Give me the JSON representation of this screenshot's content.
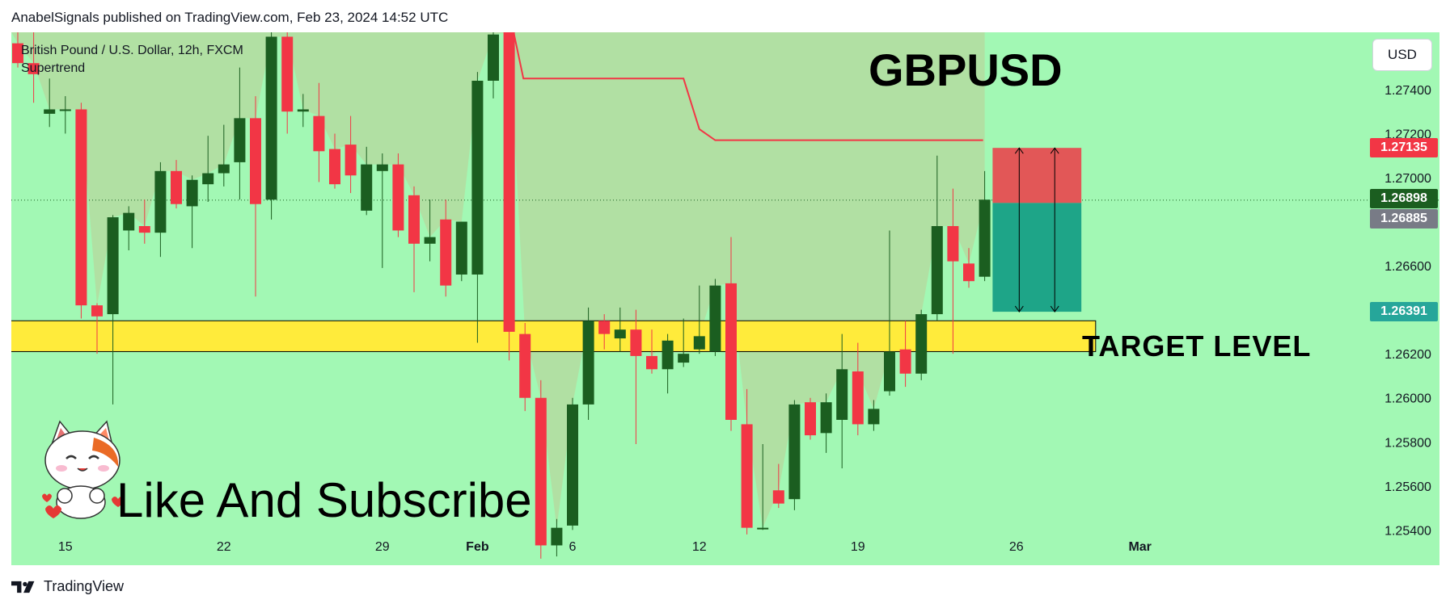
{
  "header": {
    "attribution": "AnabelSignals published on TradingView.com, Feb 23, 2024 14:52 UTC"
  },
  "legend": {
    "symbol_line": "British Pound / U.S. Dollar, 12h, FXCM",
    "indicator": "Supertrend"
  },
  "annotations": {
    "title": "GBPUSD",
    "target_label": "TARGET LEVEL",
    "cta": "Like And Subscribe"
  },
  "currency_button": "USD",
  "price_tags": {
    "stop": {
      "value": "1.27135",
      "color": "#f23645"
    },
    "last": {
      "value": "1.26898",
      "color": "#1b5e20"
    },
    "prev": {
      "value": "1.26885",
      "color": "#787b86"
    },
    "target": {
      "value": "1.26391",
      "color": "#26a69a"
    }
  },
  "footer": {
    "brand": "TradingView"
  },
  "colors": {
    "background": "#a2f8b4",
    "bull": "#1b5e20",
    "bear": "#f23645",
    "supertrend_down": "#f23645",
    "zone": "#ffeb3b"
  },
  "chart_data": {
    "type": "candlestick",
    "symbol": "GBPUSD",
    "timeframe": "12h",
    "ylim": [
      1.2524,
      1.2766
    ],
    "y_ticks": [
      1.274,
      1.272,
      1.27,
      1.266,
      1.262,
      1.26,
      1.258,
      1.256,
      1.254
    ],
    "x_ticks": [
      {
        "label": "15",
        "i": 3
      },
      {
        "label": "22",
        "i": 13
      },
      {
        "label": "29",
        "i": 23
      },
      {
        "label": "Feb",
        "i": 29
      },
      {
        "label": "6",
        "i": 35
      },
      {
        "label": "12",
        "i": 43
      },
      {
        "label": "19",
        "i": 53
      },
      {
        "label": "26",
        "i": 63
      },
      {
        "label": "Mar",
        "i": 70.8
      }
    ],
    "candles": [
      {
        "o": 1.2761,
        "h": 1.2766,
        "l": 1.275,
        "c": 1.2752
      },
      {
        "o": 1.2752,
        "h": 1.277,
        "l": 1.2734,
        "c": 1.2747
      },
      {
        "o": 1.2729,
        "h": 1.2745,
        "l": 1.2723,
        "c": 1.2731
      },
      {
        "o": 1.2731,
        "h": 1.2737,
        "l": 1.272,
        "c": 1.2731
      },
      {
        "o": 1.2731,
        "h": 1.2734,
        "l": 1.2636,
        "c": 1.2642
      },
      {
        "o": 1.2642,
        "h": 1.2643,
        "l": 1.262,
        "c": 1.2637
      },
      {
        "o": 1.2638,
        "h": 1.2683,
        "l": 1.2597,
        "c": 1.2682
      },
      {
        "o": 1.2676,
        "h": 1.2687,
        "l": 1.2667,
        "c": 1.2684
      },
      {
        "o": 1.2678,
        "h": 1.269,
        "l": 1.267,
        "c": 1.2675
      },
      {
        "o": 1.2675,
        "h": 1.2707,
        "l": 1.2664,
        "c": 1.2703
      },
      {
        "o": 1.2703,
        "h": 1.2708,
        "l": 1.2686,
        "c": 1.2688
      },
      {
        "o": 1.2687,
        "h": 1.2701,
        "l": 1.2668,
        "c": 1.2699
      },
      {
        "o": 1.2697,
        "h": 1.2719,
        "l": 1.2689,
        "c": 1.2702
      },
      {
        "o": 1.2702,
        "h": 1.2724,
        "l": 1.2696,
        "c": 1.2706
      },
      {
        "o": 1.2707,
        "h": 1.275,
        "l": 1.269,
        "c": 1.2727
      },
      {
        "o": 1.2727,
        "h": 1.2737,
        "l": 1.2646,
        "c": 1.2688
      },
      {
        "o": 1.269,
        "h": 1.2776,
        "l": 1.2681,
        "c": 1.2764
      },
      {
        "o": 1.2764,
        "h": 1.2771,
        "l": 1.272,
        "c": 1.273
      },
      {
        "o": 1.273,
        "h": 1.2738,
        "l": 1.2723,
        "c": 1.2731
      },
      {
        "o": 1.2728,
        "h": 1.2743,
        "l": 1.2698,
        "c": 1.2712
      },
      {
        "o": 1.2713,
        "h": 1.272,
        "l": 1.2695,
        "c": 1.2697
      },
      {
        "o": 1.2715,
        "h": 1.2728,
        "l": 1.2693,
        "c": 1.2701
      },
      {
        "o": 1.2685,
        "h": 1.2714,
        "l": 1.2683,
        "c": 1.2706
      },
      {
        "o": 1.2703,
        "h": 1.2711,
        "l": 1.2659,
        "c": 1.2706
      },
      {
        "o": 1.2706,
        "h": 1.2711,
        "l": 1.2673,
        "c": 1.2676
      },
      {
        "o": 1.2692,
        "h": 1.2696,
        "l": 1.2648,
        "c": 1.267
      },
      {
        "o": 1.267,
        "h": 1.269,
        "l": 1.2662,
        "c": 1.2673
      },
      {
        "o": 1.2681,
        "h": 1.269,
        "l": 1.2646,
        "c": 1.2651
      },
      {
        "o": 1.2656,
        "h": 1.268,
        "l": 1.2653,
        "c": 1.268
      },
      {
        "o": 1.2656,
        "h": 1.2748,
        "l": 1.2625,
        "c": 1.2744
      },
      {
        "o": 1.2744,
        "h": 1.2769,
        "l": 1.2736,
        "c": 1.2765
      },
      {
        "o": 1.2766,
        "h": 1.2779,
        "l": 1.2617,
        "c": 1.263
      },
      {
        "o": 1.2629,
        "h": 1.2634,
        "l": 1.2594,
        "c": 1.26
      },
      {
        "o": 1.26,
        "h": 1.2608,
        "l": 1.2527,
        "c": 1.2533
      },
      {
        "o": 1.2533,
        "h": 1.2545,
        "l": 1.2528,
        "c": 1.2541
      },
      {
        "o": 1.2542,
        "h": 1.26,
        "l": 1.254,
        "c": 1.2597
      },
      {
        "o": 1.2597,
        "h": 1.2641,
        "l": 1.259,
        "c": 1.2635
      },
      {
        "o": 1.2635,
        "h": 1.2638,
        "l": 1.2622,
        "c": 1.2629
      },
      {
        "o": 1.2627,
        "h": 1.2641,
        "l": 1.2621,
        "c": 1.2631
      },
      {
        "o": 1.2631,
        "h": 1.264,
        "l": 1.2579,
        "c": 1.2619
      },
      {
        "o": 1.2619,
        "h": 1.2631,
        "l": 1.2611,
        "c": 1.2613
      },
      {
        "o": 1.2613,
        "h": 1.2629,
        "l": 1.2602,
        "c": 1.2626
      },
      {
        "o": 1.2616,
        "h": 1.2636,
        "l": 1.2614,
        "c": 1.262
      },
      {
        "o": 1.2622,
        "h": 1.2651,
        "l": 1.262,
        "c": 1.2628
      },
      {
        "o": 1.2621,
        "h": 1.2654,
        "l": 1.2619,
        "c": 1.2651
      },
      {
        "o": 1.2652,
        "h": 1.2673,
        "l": 1.2585,
        "c": 1.259
      },
      {
        "o": 1.2588,
        "h": 1.2604,
        "l": 1.2538,
        "c": 1.2541
      },
      {
        "o": 1.2541,
        "h": 1.2579,
        "l": 1.254,
        "c": 1.2541
      },
      {
        "o": 1.2558,
        "h": 1.257,
        "l": 1.255,
        "c": 1.2552
      },
      {
        "o": 1.2554,
        "h": 1.2599,
        "l": 1.2549,
        "c": 1.2597
      },
      {
        "o": 1.2598,
        "h": 1.26,
        "l": 1.2581,
        "c": 1.2583
      },
      {
        "o": 1.2584,
        "h": 1.2602,
        "l": 1.2575,
        "c": 1.2598
      },
      {
        "o": 1.259,
        "h": 1.2629,
        "l": 1.2568,
        "c": 1.2613
      },
      {
        "o": 1.2612,
        "h": 1.2625,
        "l": 1.2583,
        "c": 1.2588
      },
      {
        "o": 1.2588,
        "h": 1.2599,
        "l": 1.2585,
        "c": 1.2595
      },
      {
        "o": 1.2603,
        "h": 1.2676,
        "l": 1.2601,
        "c": 1.2621
      },
      {
        "o": 1.2622,
        "h": 1.2635,
        "l": 1.2605,
        "c": 1.2611
      },
      {
        "o": 1.2611,
        "h": 1.264,
        "l": 1.2608,
        "c": 1.2638
      },
      {
        "o": 1.2638,
        "h": 1.271,
        "l": 1.2635,
        "c": 1.2678
      },
      {
        "o": 1.2678,
        "h": 1.2695,
        "l": 1.262,
        "c": 1.2662
      },
      {
        "o": 1.2661,
        "h": 1.2668,
        "l": 1.265,
        "c": 1.2653
      },
      {
        "o": 1.2655,
        "h": 1.2703,
        "l": 1.2653,
        "c": 1.269
      }
    ],
    "supertrend": [
      {
        "i": 30.9,
        "v": 1.2779
      },
      {
        "i": 31.9,
        "v": 1.2745
      },
      {
        "i": 42,
        "v": 1.2745
      },
      {
        "i": 43,
        "v": 1.2722
      },
      {
        "i": 44,
        "v": 1.2717
      },
      {
        "i": 60.9,
        "v": 1.2717
      }
    ],
    "target_zone": {
      "from_i": -0.8,
      "to_i": 68,
      "low": 1.2621,
      "high": 1.2635
    },
    "position": {
      "from_i": 61.5,
      "to_i": 67.1,
      "entry": 1.26885,
      "stop": 1.27135,
      "target": 1.26391
    },
    "last_price": 1.26898
  }
}
